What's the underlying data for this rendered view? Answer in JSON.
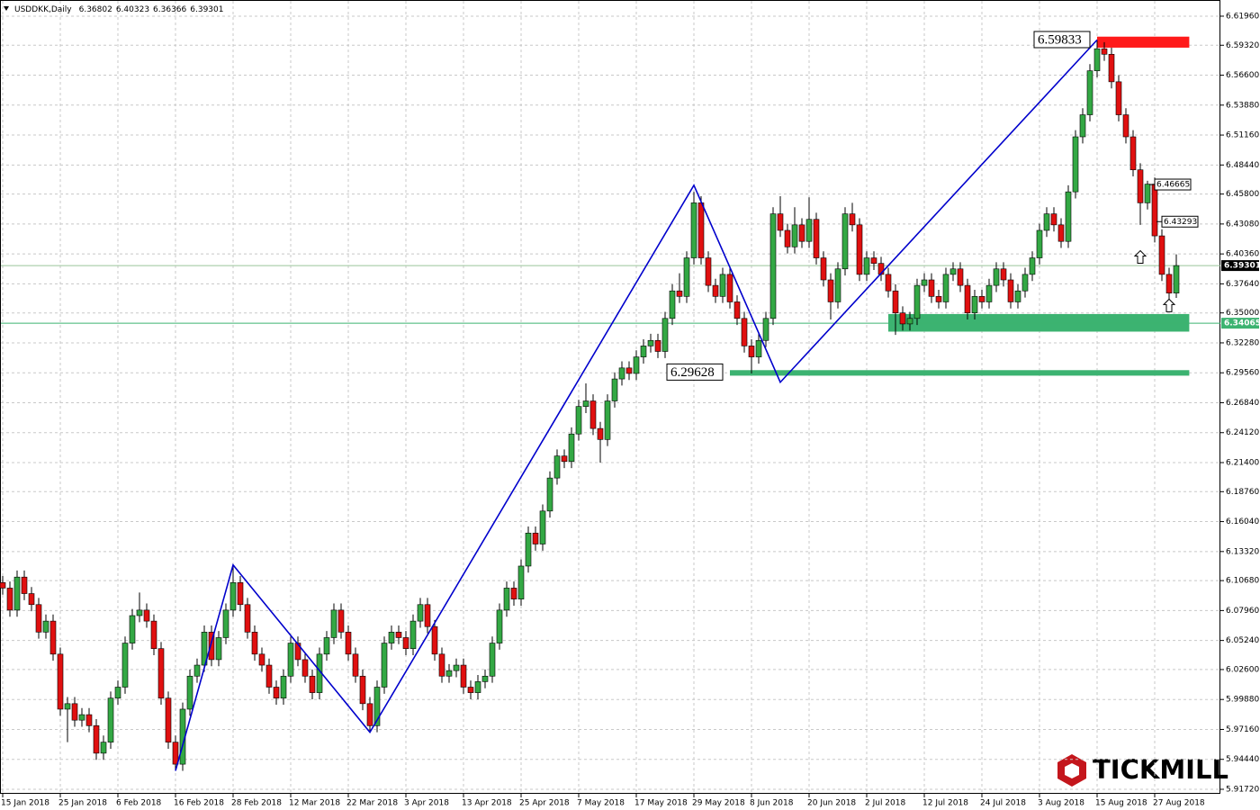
{
  "chart_data": {
    "type": "candlestick",
    "title": "USDDKK,Daily",
    "logo": "TICKMILL",
    "up_color": "#33a844",
    "down_color": "#e01010",
    "grid": true,
    "ylim": [
      5.9131,
      6.6343
    ],
    "yticks": [
      {
        "value": 6.6196,
        "label": "6.61960"
      },
      {
        "value": 6.5932,
        "label": "6.59320"
      },
      {
        "value": 6.566,
        "label": "6.56600"
      },
      {
        "value": 6.5388,
        "label": "6.53880"
      },
      {
        "value": 6.5116,
        "label": "6.51160"
      },
      {
        "value": 6.4844,
        "label": "6.48440"
      },
      {
        "value": 6.458,
        "label": "6.45800"
      },
      {
        "value": 6.4308,
        "label": "6.43080"
      },
      {
        "value": 6.4036,
        "label": "6.40360"
      },
      {
        "value": 6.3764,
        "label": "6.37640"
      },
      {
        "value": 6.35,
        "label": "6.35000"
      },
      {
        "value": 6.3228,
        "label": "6.32280"
      },
      {
        "value": 6.2956,
        "label": "6.29560"
      },
      {
        "value": 6.2684,
        "label": "6.26840"
      },
      {
        "value": 6.2412,
        "label": "6.24120"
      },
      {
        "value": 6.214,
        "label": "6.21400"
      },
      {
        "value": 6.1876,
        "label": "6.18760"
      },
      {
        "value": 6.1604,
        "label": "6.16040"
      },
      {
        "value": 6.1332,
        "label": "6.13320"
      },
      {
        "value": 6.1068,
        "label": "6.10680"
      },
      {
        "value": 6.0796,
        "label": "6.07960"
      },
      {
        "value": 6.0524,
        "label": "6.05240"
      },
      {
        "value": 6.026,
        "label": "6.02600"
      },
      {
        "value": 5.9988,
        "label": "5.99880"
      },
      {
        "value": 5.9716,
        "label": "5.97160"
      },
      {
        "value": 5.9444,
        "label": "5.94440"
      },
      {
        "value": 5.9172,
        "label": "5.91720"
      }
    ],
    "categories": [
      "15 Jan 2018",
      null,
      null,
      null,
      null,
      null,
      null,
      null,
      "25 Jan 2018",
      null,
      null,
      null,
      null,
      null,
      null,
      null,
      "6 Feb 2018",
      null,
      null,
      null,
      null,
      null,
      null,
      null,
      "16 Feb 2018",
      null,
      null,
      null,
      null,
      null,
      null,
      null,
      "28 Feb 2018",
      null,
      null,
      null,
      null,
      null,
      null,
      null,
      "12 Mar 2018",
      null,
      null,
      null,
      null,
      null,
      null,
      null,
      "22 Mar 2018",
      null,
      null,
      null,
      null,
      null,
      null,
      null,
      "3 Apr 2018",
      null,
      null,
      null,
      null,
      null,
      null,
      null,
      "13 Apr 2018",
      null,
      null,
      null,
      null,
      null,
      null,
      null,
      "25 Apr 2018",
      null,
      null,
      null,
      null,
      null,
      null,
      null,
      "7 May 2018",
      null,
      null,
      null,
      null,
      null,
      null,
      null,
      "17 May 2018",
      null,
      null,
      null,
      null,
      null,
      null,
      null,
      "29 May 2018",
      null,
      null,
      null,
      null,
      null,
      null,
      null,
      "8 Jun 2018",
      null,
      null,
      null,
      null,
      null,
      null,
      null,
      "20 Jun 2018",
      null,
      null,
      null,
      null,
      null,
      null,
      null,
      "2 Jul 2018",
      null,
      null,
      null,
      null,
      null,
      null,
      null,
      "12 Jul 2018",
      null,
      null,
      null,
      null,
      null,
      null,
      null,
      "24 Jul 2018",
      null,
      null,
      null,
      null,
      null,
      null,
      null,
      "3 Aug 2018",
      null,
      null,
      null,
      null,
      null,
      null,
      null,
      "15 Aug 2018",
      null,
      null,
      null,
      null,
      null,
      null,
      null,
      "27 Aug 2018",
      null,
      null,
      null
    ],
    "ohlc": [
      [
        6.105,
        6.111,
        6.094,
        6.1
      ],
      [
        6.1,
        6.106,
        6.074,
        6.08
      ],
      [
        6.08,
        6.116,
        6.074,
        6.11
      ],
      [
        6.11,
        6.116,
        6.089,
        6.095
      ],
      [
        6.095,
        6.101,
        6.079,
        6.085
      ],
      [
        6.085,
        6.091,
        6.054,
        6.06
      ],
      [
        6.06,
        6.076,
        6.054,
        6.07
      ],
      [
        6.07,
        6.076,
        6.034,
        6.04
      ],
      [
        6.04,
        6.046,
        5.984,
        5.99
      ],
      [
        5.99,
        6.001,
        5.96,
        5.995
      ],
      [
        5.995,
        6.001,
        5.974,
        5.98
      ],
      [
        5.98,
        5.991,
        5.974,
        5.985
      ],
      [
        5.985,
        5.991,
        5.969,
        5.975
      ],
      [
        5.975,
        5.981,
        5.944,
        5.95
      ],
      [
        5.95,
        5.966,
        5.944,
        5.96
      ],
      [
        5.96,
        6.006,
        5.954,
        6.0
      ],
      [
        6.0,
        6.016,
        5.994,
        6.01
      ],
      [
        6.01,
        6.056,
        6.004,
        6.05
      ],
      [
        6.05,
        6.081,
        6.044,
        6.075
      ],
      [
        6.075,
        6.096,
        6.069,
        6.08
      ],
      [
        6.08,
        6.086,
        6.064,
        6.07
      ],
      [
        6.07,
        6.076,
        6.039,
        6.045
      ],
      [
        6.045,
        6.051,
        5.994,
        6.0
      ],
      [
        6.0,
        6.006,
        5.954,
        5.96
      ],
      [
        5.96,
        5.966,
        5.934,
        5.94
      ],
      [
        5.94,
        5.996,
        5.934,
        5.99
      ],
      [
        5.99,
        6.026,
        5.984,
        6.02
      ],
      [
        6.02,
        6.036,
        6.014,
        6.03
      ],
      [
        6.03,
        6.066,
        6.024,
        6.06
      ],
      [
        6.06,
        6.066,
        6.029,
        6.035
      ],
      [
        6.035,
        6.061,
        6.029,
        6.055
      ],
      [
        6.055,
        6.086,
        6.049,
        6.08
      ],
      [
        6.08,
        6.121,
        6.074,
        6.105
      ],
      [
        6.105,
        6.111,
        6.079,
        6.085
      ],
      [
        6.085,
        6.091,
        6.054,
        6.06
      ],
      [
        6.06,
        6.066,
        6.034,
        6.04
      ],
      [
        6.04,
        6.046,
        6.024,
        6.03
      ],
      [
        6.03,
        6.036,
        6.004,
        6.01
      ],
      [
        6.01,
        6.016,
        5.994,
        6.0
      ],
      [
        6.0,
        6.026,
        5.994,
        6.02
      ],
      [
        6.02,
        6.056,
        6.014,
        6.05
      ],
      [
        6.05,
        6.056,
        6.029,
        6.035
      ],
      [
        6.035,
        6.041,
        6.014,
        6.02
      ],
      [
        6.02,
        6.026,
        5.999,
        6.005
      ],
      [
        6.005,
        6.046,
        5.999,
        6.04
      ],
      [
        6.04,
        6.061,
        6.034,
        6.055
      ],
      [
        6.055,
        6.086,
        6.049,
        6.08
      ],
      [
        6.08,
        6.086,
        6.054,
        6.06
      ],
      [
        6.06,
        6.066,
        6.034,
        6.04
      ],
      [
        6.04,
        6.046,
        6.014,
        6.02
      ],
      [
        6.02,
        6.026,
        5.989,
        5.995
      ],
      [
        5.995,
        6.001,
        5.969,
        5.975
      ],
      [
        5.975,
        6.016,
        5.969,
        6.01
      ],
      [
        6.01,
        6.056,
        6.004,
        6.05
      ],
      [
        6.05,
        6.066,
        6.044,
        6.06
      ],
      [
        6.06,
        6.066,
        6.049,
        6.055
      ],
      [
        6.055,
        6.061,
        6.039,
        6.045
      ],
      [
        6.045,
        6.076,
        6.039,
        6.07
      ],
      [
        6.07,
        6.091,
        6.064,
        6.085
      ],
      [
        6.085,
        6.091,
        6.059,
        6.065
      ],
      [
        6.065,
        6.071,
        6.034,
        6.04
      ],
      [
        6.04,
        6.046,
        6.014,
        6.02
      ],
      [
        6.02,
        6.031,
        6.014,
        6.025
      ],
      [
        6.025,
        6.036,
        6.019,
        6.03
      ],
      [
        6.03,
        6.036,
        6.004,
        6.01
      ],
      [
        6.01,
        6.016,
        5.999,
        6.005
      ],
      [
        6.005,
        6.021,
        5.999,
        6.015
      ],
      [
        6.015,
        6.026,
        6.009,
        6.02
      ],
      [
        6.02,
        6.056,
        6.014,
        6.05
      ],
      [
        6.05,
        6.086,
        6.044,
        6.08
      ],
      [
        6.08,
        6.106,
        6.074,
        6.1
      ],
      [
        6.1,
        6.106,
        6.084,
        6.09
      ],
      [
        6.09,
        6.126,
        6.084,
        6.12
      ],
      [
        6.12,
        6.156,
        6.114,
        6.15
      ],
      [
        6.15,
        6.156,
        6.134,
        6.14
      ],
      [
        6.14,
        6.176,
        6.134,
        6.17
      ],
      [
        6.17,
        6.206,
        6.164,
        6.2
      ],
      [
        6.2,
        6.226,
        6.194,
        6.22
      ],
      [
        6.22,
        6.226,
        6.209,
        6.215
      ],
      [
        6.215,
        6.246,
        6.209,
        6.24
      ],
      [
        6.24,
        6.271,
        6.234,
        6.265
      ],
      [
        6.265,
        6.286,
        6.259,
        6.27
      ],
      [
        6.27,
        6.276,
        6.239,
        6.245
      ],
      [
        6.245,
        6.251,
        6.214,
        6.235
      ],
      [
        6.235,
        6.276,
        6.229,
        6.27
      ],
      [
        6.27,
        6.296,
        6.264,
        6.29
      ],
      [
        6.29,
        6.306,
        6.284,
        6.3
      ],
      [
        6.3,
        6.306,
        6.289,
        6.295
      ],
      [
        6.295,
        6.316,
        6.289,
        6.31
      ],
      [
        6.31,
        6.326,
        6.304,
        6.32
      ],
      [
        6.32,
        6.331,
        6.314,
        6.325
      ],
      [
        6.325,
        6.331,
        6.309,
        6.315
      ],
      [
        6.315,
        6.351,
        6.309,
        6.345
      ],
      [
        6.345,
        6.376,
        6.339,
        6.37
      ],
      [
        6.37,
        6.386,
        6.359,
        6.365
      ],
      [
        6.365,
        6.406,
        6.359,
        6.4
      ],
      [
        6.4,
        6.46,
        6.394,
        6.45
      ],
      [
        6.45,
        6.456,
        6.394,
        6.4
      ],
      [
        6.4,
        6.406,
        6.369,
        6.375
      ],
      [
        6.375,
        6.381,
        6.359,
        6.365
      ],
      [
        6.365,
        6.391,
        6.359,
        6.385
      ],
      [
        6.385,
        6.391,
        6.354,
        6.36
      ],
      [
        6.36,
        6.366,
        6.339,
        6.345
      ],
      [
        6.345,
        6.351,
        6.314,
        6.32
      ],
      [
        6.32,
        6.326,
        6.295,
        6.31
      ],
      [
        6.31,
        6.331,
        6.304,
        6.325
      ],
      [
        6.325,
        6.351,
        6.319,
        6.345
      ],
      [
        6.345,
        6.446,
        6.339,
        6.44
      ],
      [
        6.44,
        6.456,
        6.419,
        6.425
      ],
      [
        6.425,
        6.431,
        6.404,
        6.41
      ],
      [
        6.41,
        6.446,
        6.404,
        6.43
      ],
      [
        6.43,
        6.436,
        6.409,
        6.415
      ],
      [
        6.415,
        6.455,
        6.409,
        6.435
      ],
      [
        6.435,
        6.441,
        6.394,
        6.4
      ],
      [
        6.4,
        6.406,
        6.374,
        6.38
      ],
      [
        6.38,
        6.386,
        6.344,
        6.36
      ],
      [
        6.36,
        6.396,
        6.354,
        6.39
      ],
      [
        6.39,
        6.446,
        6.384,
        6.44
      ],
      [
        6.44,
        6.45,
        6.424,
        6.43
      ],
      [
        6.43,
        6.436,
        6.379,
        6.385
      ],
      [
        6.385,
        6.406,
        6.379,
        6.4
      ],
      [
        6.4,
        6.406,
        6.389,
        6.395
      ],
      [
        6.395,
        6.401,
        6.379,
        6.385
      ],
      [
        6.385,
        6.391,
        6.364,
        6.37
      ],
      [
        6.37,
        6.376,
        6.33,
        6.35
      ],
      [
        6.35,
        6.356,
        6.334,
        6.34
      ],
      [
        6.34,
        6.351,
        6.334,
        6.345
      ],
      [
        6.345,
        6.381,
        6.339,
        6.375
      ],
      [
        6.375,
        6.386,
        6.369,
        6.38
      ],
      [
        6.38,
        6.386,
        6.359,
        6.365
      ],
      [
        6.365,
        6.371,
        6.354,
        6.36
      ],
      [
        6.36,
        6.391,
        6.354,
        6.385
      ],
      [
        6.385,
        6.396,
        6.379,
        6.39
      ],
      [
        6.39,
        6.396,
        6.369,
        6.375
      ],
      [
        6.375,
        6.381,
        6.344,
        6.35
      ],
      [
        6.35,
        6.371,
        6.344,
        6.365
      ],
      [
        6.365,
        6.371,
        6.354,
        6.36
      ],
      [
        6.36,
        6.381,
        6.354,
        6.375
      ],
      [
        6.375,
        6.396,
        6.369,
        6.39
      ],
      [
        6.39,
        6.396,
        6.374,
        6.38
      ],
      [
        6.38,
        6.386,
        6.354,
        6.36
      ],
      [
        6.36,
        6.376,
        6.354,
        6.37
      ],
      [
        6.37,
        6.391,
        6.364,
        6.385
      ],
      [
        6.385,
        6.406,
        6.379,
        6.4
      ],
      [
        6.4,
        6.431,
        6.394,
        6.425
      ],
      [
        6.425,
        6.446,
        6.419,
        6.44
      ],
      [
        6.44,
        6.446,
        6.424,
        6.43
      ],
      [
        6.43,
        6.436,
        6.409,
        6.415
      ],
      [
        6.415,
        6.466,
        6.409,
        6.46
      ],
      [
        6.46,
        6.516,
        6.454,
        6.51
      ],
      [
        6.51,
        6.536,
        6.504,
        6.53
      ],
      [
        6.53,
        6.576,
        6.524,
        6.57
      ],
      [
        6.57,
        6.598,
        6.564,
        6.59
      ],
      [
        6.59,
        6.596,
        6.579,
        6.585
      ],
      [
        6.585,
        6.591,
        6.554,
        6.56
      ],
      [
        6.56,
        6.566,
        6.524,
        6.53
      ],
      [
        6.53,
        6.536,
        6.504,
        6.51
      ],
      [
        6.51,
        6.516,
        6.474,
        6.48
      ],
      [
        6.48,
        6.486,
        6.43,
        6.45
      ],
      [
        6.45,
        6.47,
        6.444,
        6.467
      ],
      [
        6.467,
        6.473,
        6.414,
        6.42
      ],
      [
        6.42,
        6.426,
        6.379,
        6.385
      ],
      [
        6.385,
        6.391,
        6.362,
        6.368
      ],
      [
        6.36802,
        6.40323,
        6.36366,
        6.39301
      ]
    ],
    "zigzag": {
      "color": "#0000cc",
      "x": [
        24,
        32,
        51,
        96,
        108,
        152
      ],
      "values": [
        5.934,
        6.121,
        5.969,
        6.466,
        6.287,
        6.598
      ]
    },
    "zones": [
      {
        "color": "#ff1a1a",
        "from": 6.601,
        "to": 6.591,
        "start": 152,
        "end": 164.8
      },
      {
        "color": "#3cb371",
        "from": 6.349,
        "to": 6.333,
        "start": 123,
        "end": 164.8
      },
      {
        "color": "#3cb371",
        "from": 6.298,
        "to": 6.293,
        "start": 101,
        "end": 164.8
      }
    ],
    "hlines": [
      {
        "value": 6.39301,
        "color": "#9ac49a",
        "tag_color": "#000000"
      },
      {
        "value": 6.34065,
        "color": "#3cb371",
        "tag_color": "#3cb371"
      }
    ],
    "level_labels": [
      {
        "value": 6.59833,
        "x": 152
      },
      {
        "value": 6.29628,
        "x": 101
      }
    ],
    "price_tags": [
      {
        "value": 6.46665,
        "x": 159
      },
      {
        "value": 6.43293,
        "x": 160
      }
    ]
  }
}
